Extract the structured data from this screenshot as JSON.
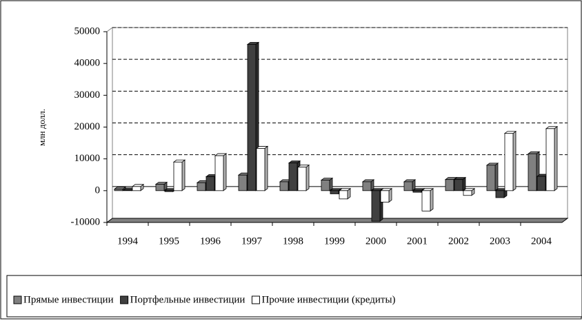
{
  "chart_data": {
    "type": "bar3d",
    "y_label": "млн долл.",
    "categories": [
      "1994",
      "1995",
      "1996",
      "1997",
      "1998",
      "1999",
      "2000",
      "2001",
      "2002",
      "2003",
      "2004"
    ],
    "series": [
      {
        "name": "Прямые инвестиции",
        "color": "#808080",
        "values": [
          500,
          2000,
          2500,
          4900,
          2800,
          3300,
          2800,
          2800,
          3500,
          8000,
          11600
        ]
      },
      {
        "name": "Портфельные инвестиции",
        "color": "#404040",
        "values": [
          200,
          -300,
          4400,
          46000,
          8700,
          -1000,
          -9600,
          -500,
          3500,
          -2200,
          4500
        ]
      },
      {
        "name": "Прочие инвестиции (кредиты)",
        "color": "#ffffff",
        "values": [
          1300,
          9000,
          11000,
          13300,
          7400,
          -2600,
          -3600,
          -6400,
          -1500,
          18000,
          19500
        ]
      }
    ],
    "ylim": [
      -10000,
      50000
    ],
    "yticks": [
      -10000,
      0,
      10000,
      20000,
      30000,
      40000,
      50000
    ],
    "grid": true,
    "legend": "bottom"
  }
}
